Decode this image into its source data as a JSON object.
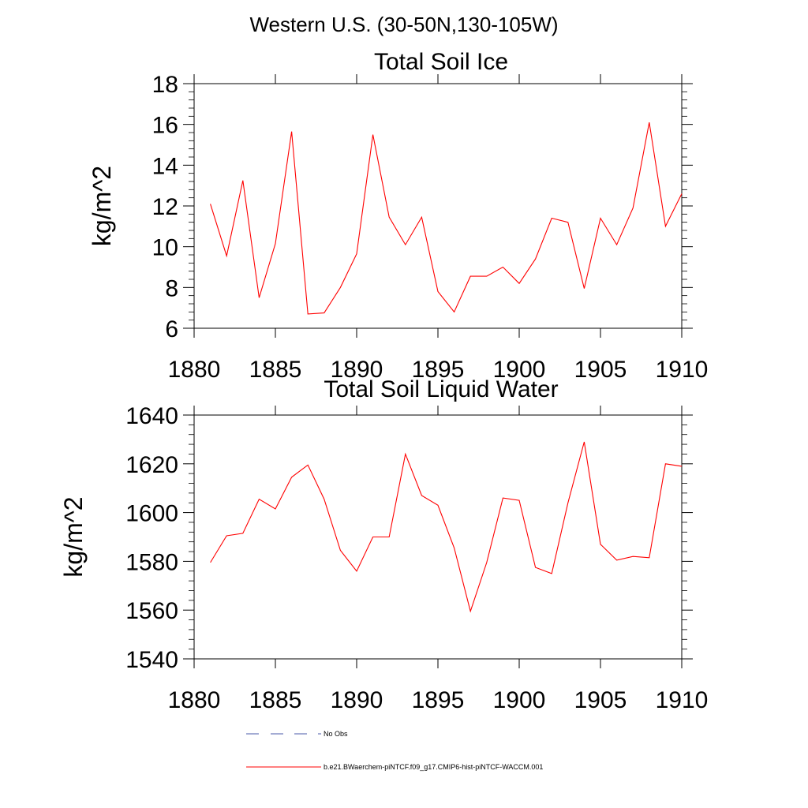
{
  "figure_title": "Western U.S. (30-50N,130-105W)",
  "legend": {
    "entries": [
      {
        "label": "No Obs",
        "style": "dashed",
        "color": "#4a5aa8"
      },
      {
        "label": "b.e21.BWaerchem-piNTCF.f09_g17.CMIP6-hist-piNTCF-WACCM.001",
        "style": "solid",
        "color": "#ff0000"
      }
    ]
  },
  "chart_data": [
    {
      "type": "line",
      "title": "Total Soil Ice",
      "xlabel": "",
      "ylabel": "kg/m^2",
      "xlim": [
        1880,
        1910
      ],
      "ylim": [
        6,
        18
      ],
      "xticks": [
        1880,
        1885,
        1890,
        1895,
        1900,
        1905,
        1910
      ],
      "yticks": [
        6,
        8,
        10,
        12,
        14,
        16,
        18
      ],
      "grid": false,
      "series": [
        {
          "name": "b.e21.BWaerchem-piNTCF.f09_g17.CMIP6-hist-piNTCF-WACCM.001",
          "color": "#ff0000",
          "x": [
            1881,
            1882,
            1883,
            1884,
            1885,
            1886,
            1887,
            1888,
            1889,
            1890,
            1891,
            1892,
            1893,
            1894,
            1895,
            1896,
            1897,
            1898,
            1899,
            1900,
            1901,
            1902,
            1903,
            1904,
            1905,
            1906,
            1907,
            1908,
            1909,
            1910
          ],
          "y": [
            12.1,
            9.55,
            13.25,
            7.5,
            10.15,
            15.65,
            6.7,
            6.75,
            8.0,
            9.65,
            15.5,
            11.45,
            10.1,
            11.45,
            7.8,
            6.8,
            8.55,
            8.55,
            9.0,
            8.2,
            9.4,
            11.4,
            11.2,
            7.95,
            11.4,
            10.1,
            11.9,
            16.1,
            11.0,
            12.6
          ]
        }
      ]
    },
    {
      "type": "line",
      "title": "Total Soil Liquid Water",
      "xlabel": "",
      "ylabel": "kg/m^2",
      "xlim": [
        1880,
        1910
      ],
      "ylim": [
        1540,
        1640
      ],
      "xticks": [
        1880,
        1885,
        1890,
        1895,
        1900,
        1905,
        1910
      ],
      "yticks": [
        1540,
        1560,
        1580,
        1600,
        1620,
        1640
      ],
      "grid": false,
      "series": [
        {
          "name": "b.e21.BWaerchem-piNTCF.f09_g17.CMIP6-hist-piNTCF-WACCM.001",
          "color": "#ff0000",
          "x": [
            1881,
            1882,
            1883,
            1884,
            1885,
            1886,
            1887,
            1888,
            1889,
            1890,
            1891,
            1892,
            1893,
            1894,
            1895,
            1896,
            1897,
            1898,
            1899,
            1900,
            1901,
            1902,
            1903,
            1904,
            1905,
            1906,
            1907,
            1908,
            1909,
            1910
          ],
          "y": [
            1579.5,
            1590.5,
            1591.5,
            1605.5,
            1601.5,
            1614.5,
            1619.5,
            1605.5,
            1584.5,
            1576.0,
            1590.0,
            1590.0,
            1624.0,
            1607.0,
            1603.0,
            1585.5,
            1559.5,
            1579.5,
            1606.0,
            1605.0,
            1577.5,
            1575.0,
            1604.0,
            1629.0,
            1587.0,
            1580.5,
            1582.0,
            1581.5,
            1620.0,
            1619.0
          ]
        }
      ]
    }
  ]
}
